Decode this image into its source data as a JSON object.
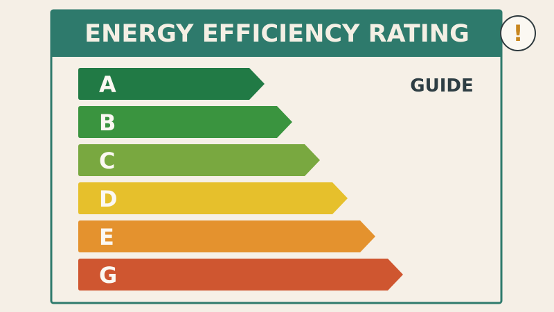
{
  "header": {
    "title": "ENERGY EFFICIENCY RATING",
    "icon": "!"
  },
  "guide": "GUIDE",
  "ratings": [
    {
      "label": "A",
      "color": "#217a45"
    },
    {
      "label": "B",
      "color": "#3a943f"
    },
    {
      "label": "C",
      "color": "#79a840"
    },
    {
      "label": "D",
      "color": "#e6c02c"
    },
    {
      "label": "E",
      "color": "#e4922e"
    },
    {
      "label": "G",
      "color": "#cf5630"
    }
  ]
}
